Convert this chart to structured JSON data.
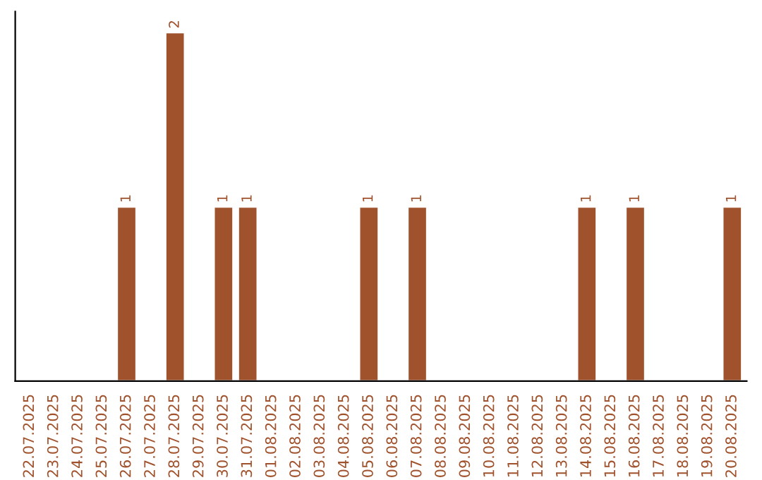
{
  "chart_data": {
    "type": "bar",
    "categories": [
      "22.07.2025",
      "23.07.2025",
      "24.07.2025",
      "25.07.2025",
      "26.07.2025",
      "27.07.2025",
      "28.07.2025",
      "29.07.2025",
      "30.07.2025",
      "31.07.2025",
      "01.08.2025",
      "02.08.2025",
      "03.08.2025",
      "04.08.2025",
      "05.08.2025",
      "06.08.2025",
      "07.08.2025",
      "08.08.2025",
      "09.08.2025",
      "10.08.2025",
      "11.08.2025",
      "12.08.2025",
      "13.08.2025",
      "14.08.2025",
      "15.08.2025",
      "16.08.2025",
      "17.08.2025",
      "18.08.2025",
      "19.08.2025",
      "20.08.2025"
    ],
    "values": [
      0,
      0,
      0,
      0,
      1,
      0,
      2,
      0,
      1,
      1,
      0,
      0,
      0,
      0,
      1,
      0,
      1,
      0,
      0,
      0,
      0,
      0,
      0,
      1,
      0,
      1,
      0,
      0,
      0,
      1
    ],
    "value_labels": [
      null,
      null,
      null,
      null,
      "1",
      null,
      "2",
      null,
      "1",
      "1",
      null,
      null,
      null,
      null,
      "1",
      null,
      "1",
      null,
      null,
      null,
      null,
      null,
      null,
      "1",
      null,
      "1",
      null,
      null,
      null,
      "1"
    ],
    "color": "#a0522d",
    "tick_labels": "x",
    "grid": false,
    "legend": false
  }
}
